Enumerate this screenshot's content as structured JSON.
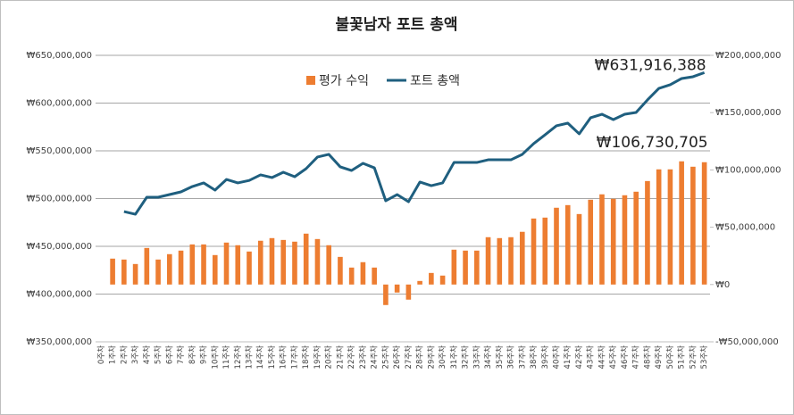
{
  "chart_data": {
    "type": "combo",
    "title": "불꽃남자 포트 총액",
    "categories": [
      "0주차",
      "1주차",
      "2주차",
      "3주차",
      "4주차",
      "5주차",
      "6주차",
      "7주차",
      "8주차",
      "9주차",
      "10주차",
      "11주차",
      "12주차",
      "13주차",
      "14주차",
      "15주차",
      "16주차",
      "17주차",
      "18주차",
      "19주차",
      "20주차",
      "21주차",
      "22주차",
      "23주차",
      "24주차",
      "25주차",
      "26주차",
      "27주차",
      "28주차",
      "29주차",
      "30주차",
      "31주차",
      "32주차",
      "33주차",
      "34주차",
      "35주차",
      "36주차",
      "37주차",
      "38주차",
      "39주차",
      "40주차",
      "41주차",
      "42주차",
      "43주차",
      "44주차",
      "45주차",
      "46주차",
      "47주차",
      "48주차",
      "49주차",
      "50주차",
      "51주차",
      "52주차",
      "53주차"
    ],
    "series": [
      {
        "name": "평가 수익",
        "type": "bar",
        "axis": "y2",
        "color": "#ed7d31",
        "values": [
          null,
          22600000,
          21800000,
          17900000,
          31900000,
          21800000,
          26500000,
          29600000,
          35000000,
          35000000,
          25700000,
          36600000,
          34300000,
          28800000,
          38200000,
          40500000,
          38900000,
          37400000,
          44400000,
          39700000,
          34300000,
          24100000,
          14800000,
          19500000,
          14800000,
          -17900000,
          -7000000,
          -13200000,
          3100000,
          10100000,
          7800000,
          30400000,
          29600000,
          29600000,
          41300000,
          40500000,
          41300000,
          46000000,
          57600000,
          58400000,
          67000000,
          69300000,
          61500000,
          74000000,
          78700000,
          74800000,
          77900000,
          81000000,
          90300000,
          100500000,
          100500000,
          107500000,
          102800000,
          106730705
        ],
        "value_labels": [
          null,
          null,
          null,
          null,
          null,
          null,
          null,
          null,
          null,
          null,
          null,
          null,
          null,
          null,
          null,
          null,
          null,
          null,
          null,
          null,
          null,
          null,
          null,
          null,
          null,
          null,
          null,
          null,
          null,
          null,
          null,
          null,
          null,
          null,
          null,
          null,
          null,
          null,
          null,
          null,
          null,
          null,
          null,
          null,
          null,
          null,
          null,
          null,
          null,
          null,
          null,
          null,
          null,
          "₩106,730,705"
        ]
      },
      {
        "name": "포트 총액",
        "type": "line",
        "color": "#1f5f7f",
        "values": [
          null,
          null,
          486400000,
          483600000,
          501400000,
          501400000,
          504200000,
          507000000,
          512600000,
          516400000,
          508900000,
          520000000,
          516400000,
          519000000,
          524800000,
          522000000,
          527600000,
          522900000,
          531300000,
          543500000,
          546300000,
          533200000,
          529400000,
          536900000,
          532200000,
          497700000,
          504200000,
          496700000,
          517300000,
          513500000,
          516400000,
          537800000,
          537800000,
          537800000,
          540600000,
          540600000,
          540600000,
          546300000,
          557500000,
          566800000,
          576200000,
          579000000,
          567800000,
          584600000,
          588300000,
          582700000,
          588300000,
          590200000,
          603300000,
          615400000,
          619200000,
          625700000,
          627600000,
          631916388
        ],
        "value_labels": [
          null,
          null,
          null,
          null,
          null,
          null,
          null,
          null,
          null,
          null,
          null,
          null,
          null,
          null,
          null,
          null,
          null,
          null,
          null,
          null,
          null,
          null,
          null,
          null,
          null,
          null,
          null,
          null,
          null,
          null,
          null,
          null,
          null,
          null,
          null,
          null,
          null,
          null,
          null,
          null,
          null,
          null,
          null,
          null,
          null,
          null,
          null,
          null,
          null,
          null,
          null,
          null,
          null,
          "₩631,916,388"
        ]
      }
    ],
    "ylim": [
      350000000,
      650000000
    ],
    "yticks": [
      {
        "value": 350000000,
        "label": "₩350,000,000"
      },
      {
        "value": 400000000,
        "label": "₩400,000,000"
      },
      {
        "value": 450000000,
        "label": "₩450,000,000"
      },
      {
        "value": 500000000,
        "label": "₩500,000,000"
      },
      {
        "value": 550000000,
        "label": "₩550,000,000"
      },
      {
        "value": 600000000,
        "label": "₩600,000,000"
      },
      {
        "value": 650000000,
        "label": "₩650,000,000"
      }
    ],
    "y2lim": [
      -50000000,
      200000000
    ],
    "y2ticks": [
      {
        "value": -50000000,
        "label": "-₩50,000,000"
      },
      {
        "value": 0,
        "label": "₩0"
      },
      {
        "value": 50000000,
        "label": "₩50,000,000"
      },
      {
        "value": 100000000,
        "label": "₩100,000,000"
      },
      {
        "value": 150000000,
        "label": "₩150,000,000"
      },
      {
        "value": 200000000,
        "label": "₩200,000,000"
      }
    ],
    "grid": true,
    "legend": "top"
  }
}
